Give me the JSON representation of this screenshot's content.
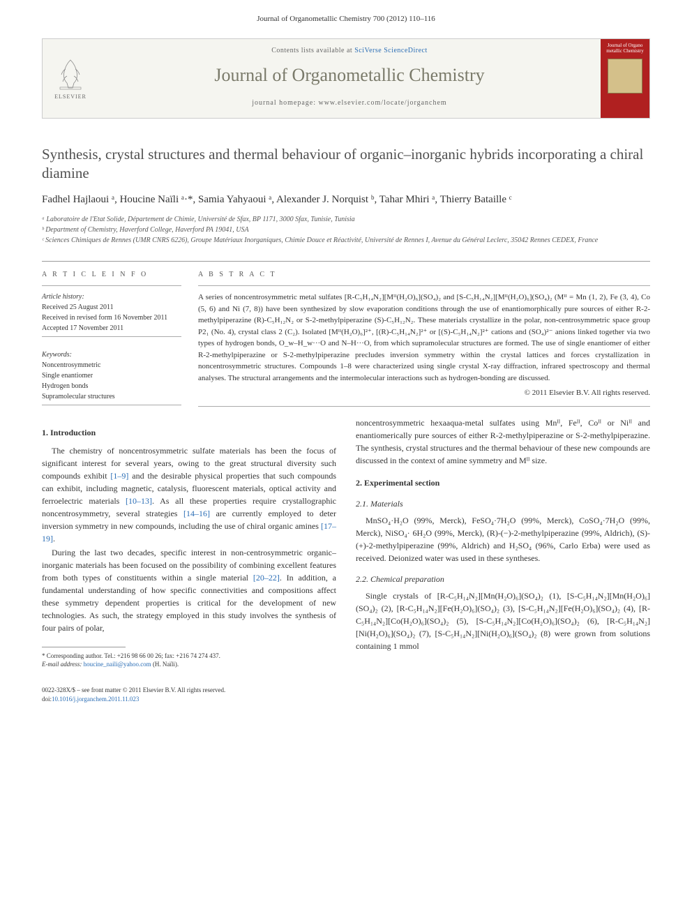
{
  "header": {
    "citation": "Journal of Organometallic Chemistry 700 (2012) 110–116"
  },
  "journalBox": {
    "publisher": "ELSEVIER",
    "contentsPrefix": "Contents lists available at ",
    "contentsLink": "SciVerse ScienceDirect",
    "journalName": "Journal of Organometallic Chemistry",
    "homepagePrefix": "journal homepage: ",
    "homepageUrl": "www.elsevier.com/locate/jorganchem",
    "coverTitle": "Journal of Organo metallic Chemistry"
  },
  "title": "Synthesis, crystal structures and thermal behaviour of organic–inorganic hybrids incorporating a chiral diamine",
  "authors": "Fadhel Hajlaoui ᵃ, Houcine Naïli ᵃ·*, Samia Yahyaoui ᵃ, Alexander J. Norquist ᵇ, Tahar Mhiri ᵃ, Thierry Bataille ᶜ",
  "affiliations": {
    "a": "ᵃ Laboratoire de l'Etat Solide, Département de Chimie, Université de Sfax, BP 1171, 3000 Sfax, Tunisie, Tunisia",
    "b": "ᵇ Department of Chemistry, Haverford College, Haverford PA 19041, USA",
    "c": "ᶜ Sciences Chimiques de Rennes (UMR CNRS 6226), Groupe Matériaux Inorganiques, Chimie Douce et Réactivité, Université de Rennes I, Avenue du Général Leclerc, 35042 Rennes CEDEX, France"
  },
  "articleInfo": {
    "heading": "A R T I C L E   I N F O",
    "historyLabel": "Article history:",
    "received": "Received 25 August 2011",
    "revised": "Received in revised form 16 November 2011",
    "accepted": "Accepted 17 November 2011",
    "keywordsLabel": "Keywords:",
    "keywords": [
      "Noncentrosymmetric",
      "Single enantiomer",
      "Hydrogen bonds",
      "Supramolecular structures"
    ]
  },
  "abstract": {
    "heading": "A B S T R A C T",
    "text": "A series of noncentrosymmetric metal sulfates [R-C₅H₁₄N₂][Mᴵᴵ(H₂O)₆](SO₄)₂ and [S-C₅H₁₄N₂][Mᴵᴵ(H₂O)₆](SO₄)₂ (Mᴵᴵ = Mn (1, 2), Fe (3, 4), Co (5, 6) and Ni (7, 8)) have been synthesized by slow evaporation conditions through the use of enantiomorphically pure sources of either R-2-methylpiperazine (R)-C₅H₁₂N₂ or S-2-methylpiperazine (S)-C₅H₁₂N₂. These materials crystallize in the polar, non-centrosymmetric space group P2₁ (No. 4), crystal class 2 (C₂). Isolated [Mᴵᴵ(H₂O)₆]²⁺, [(R)-C₅H₁₄N₂]²⁺ or [(S)-C₅H₁₄N₂]²⁺ cations and (SO₄)²⁻ anions linked together via two types of hydrogen bonds, O_w–H_w···O and N–H···O, from which supramolecular structures are formed. The use of single enantiomer of either R-2-methylpiperazine or S-2-methylpiperazine precludes inversion symmetry within the crystal lattices and forces crystallization in noncentrosymmetric structures. Compounds 1–8 were characterized using single crystal X-ray diffraction, infrared spectroscopy and thermal analyses. The structural arrangements and the intermolecular interactions such as hydrogen-bonding are discussed.",
    "copyright": "© 2011 Elsevier B.V. All rights reserved."
  },
  "body": {
    "introHeading": "1. Introduction",
    "introP1": "The chemistry of noncentrosymmetric sulfate materials has been the focus of significant interest for several years, owing to the great structural diversity such compounds exhibit [1–9] and the desirable physical properties that such compounds can exhibit, including magnetic, catalysis, fluorescent materials, optical activity and ferroelectric materials [10–13]. As all these properties require crystallographic noncentrosymmetry, several strategies [14–16] are currently employed to deter inversion symmetry in new compounds, including the use of chiral organic amines [17–19].",
    "introP2": "During the last two decades, specific interest in non-centrosymmetric organic–inorganic materials has been focused on the possibility of combining excellent features from both types of constituents within a single material [20–22]. In addition, a fundamental understanding of how specific connectivities and compositions affect these symmetry dependent properties is critical for the development of new technologies. As such, the strategy employed in this study involves the synthesis of four pairs of polar,",
    "col2Top": "noncentrosymmetric hexaaqua-metal sulfates using Mnᴵᴵ, Feᴵᴵ, Coᴵᴵ or Niᴵᴵ and enantiomerically pure sources of either R-2-methylpiperazine or S-2-methylpiperazine. The synthesis, crystal structures and the thermal behaviour of these new compounds are discussed in the context of amine symmetry and Mᴵᴵ size.",
    "expHeading": "2. Experimental section",
    "materialsHeading": "2.1. Materials",
    "materialsText": "MnSO₄·H₂O (99%, Merck), FeSO₄·7H₂O (99%, Merck), CoSO₄·7H₂O (99%, Merck), NiSO₄· 6H₂O (99%, Merck), (R)-(−)-2-methylpiperazine (99%, Aldrich), (S)-(+)-2-methylpiperazine (99%, Aldrich) and H₂SO₄ (96%, Carlo Erba) were used as received. Deionized water was used in these syntheses.",
    "prepHeading": "2.2. Chemical preparation",
    "prepText": "Single crystals of [R-C₅H₁₄N₂][Mn(H₂O)₆](SO₄)₂ (1), [S-C₅H₁₄N₂][Mn(H₂O)₆](SO₄)₂ (2), [R-C₅H₁₄N₂][Fe(H₂O)₆](SO₄)₂ (3), [S-C₅H₁₄N₂][Fe(H₂O)₆](SO₄)₂ (4), [R-C₅H₁₄N₂][Co(H₂O)₆](SO₄)₂ (5), [S-C₅H₁₄N₂][Co(H₂O)₆](SO₄)₂ (6), [R-C₅H₁₄N₂][Ni(H₂O)₆](SO₄)₂ (7), [S-C₅H₁₄N₂][Ni(H₂O)₆](SO₄)₂ (8) were grown from solutions containing 1 mmol"
  },
  "footnote": {
    "corresponding": "* Corresponding author. Tel.: +216 98 66 00 26; fax: +216 74 274 437.",
    "emailLabel": "E-mail address: ",
    "email": "houcine_naili@yahoo.com",
    "emailSuffix": " (H. Naïli)."
  },
  "footer": {
    "line1": "0022-328X/$ – see front matter © 2011 Elsevier B.V. All rights reserved.",
    "doiLabel": "doi:",
    "doi": "10.1016/j.jorganchem.2011.11.023"
  },
  "colors": {
    "link": "#2a6db5",
    "journalNameColor": "#7a7a6a",
    "coverBg": "#b02020"
  }
}
